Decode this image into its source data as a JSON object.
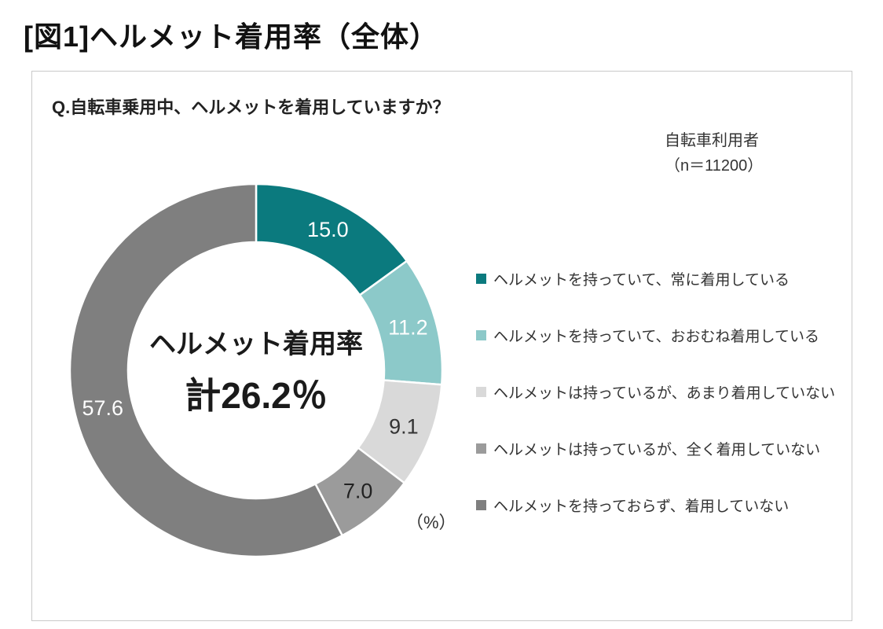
{
  "page_title": "[図1]ヘルメット着用率（全体）",
  "panel": {
    "question": "Q.自転車乗用中、ヘルメットを着用していますか？",
    "respondents": {
      "line1": "自転車利用者",
      "line2": "（n＝11200）"
    },
    "unit_label": "（%）"
  },
  "chart_data": {
    "type": "pie",
    "title": "ヘルメット着用率（全体）",
    "donut": true,
    "start_angle_deg": -90,
    "direction": "clockwise",
    "n": 11200,
    "unit": "%",
    "center_text": [
      "ヘルメット着用率",
      "計26.2％"
    ],
    "wearing_rate_total_percent": 26.2,
    "legend_position": "right",
    "segments": [
      {
        "label": "ヘルメットを持っていて、常に着用している",
        "value": 15.0,
        "color": "#0b7a7e",
        "text_color": "#ffffff"
      },
      {
        "label": "ヘルメットを持っていて、おおむね着用している",
        "value": 11.2,
        "color": "#8cc9c9",
        "text_color": "#ffffff"
      },
      {
        "label": "ヘルメットは持っているが、あまり着用していない",
        "value": 9.1,
        "color": "#d9d9d9",
        "text_color": "#333333"
      },
      {
        "label": "ヘルメットは持っているが、全く着用していない",
        "value": 7.0,
        "color": "#9b9b9b",
        "text_color": "#222222"
      },
      {
        "label": "ヘルメットを持っておらず、着用していない",
        "value": 57.6,
        "color": "#7f7f7f",
        "text_color": "#ffffff"
      }
    ]
  }
}
